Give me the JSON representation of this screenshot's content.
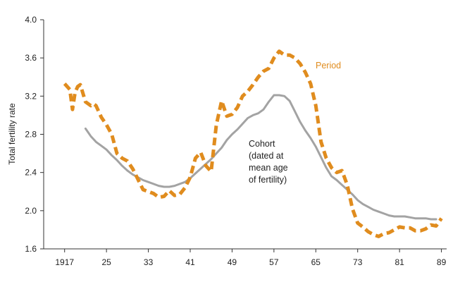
{
  "chart_data": {
    "type": "line",
    "ylabel": "Total fertility rate",
    "xlabel": "",
    "xlim": [
      1913,
      1990
    ],
    "ylim": [
      1.6,
      4.0
    ],
    "x_ticks": [
      {
        "value": 1917,
        "label": "1917"
      },
      {
        "value": 1925,
        "label": "25"
      },
      {
        "value": 1933,
        "label": "33"
      },
      {
        "value": 1941,
        "label": "41"
      },
      {
        "value": 1949,
        "label": "49"
      },
      {
        "value": 1957,
        "label": "57"
      },
      {
        "value": 1965,
        "label": "65"
      },
      {
        "value": 1973,
        "label": "73"
      },
      {
        "value": 1981,
        "label": "81"
      },
      {
        "value": 1989,
        "label": "89"
      }
    ],
    "y_ticks": [
      {
        "value": 1.6,
        "label": "1.6"
      },
      {
        "value": 2.0,
        "label": "2.0"
      },
      {
        "value": 2.4,
        "label": "2.4"
      },
      {
        "value": 2.8,
        "label": "2.8"
      },
      {
        "value": 3.2,
        "label": "3.2"
      },
      {
        "value": 3.6,
        "label": "3.6"
      },
      {
        "value": 4.0,
        "label": "4.0"
      }
    ],
    "series": [
      {
        "name": "Period",
        "label": "Period",
        "color": "#e08c1e",
        "dash": true,
        "x": [
          1917,
          1918,
          1918.5,
          1919,
          1919.5,
          1920,
          1921,
          1922,
          1922.5,
          1923,
          1924,
          1925,
          1926,
          1927,
          1928,
          1929,
          1930,
          1931,
          1932,
          1933,
          1934,
          1935,
          1936,
          1937,
          1938,
          1939,
          1940,
          1941,
          1942,
          1943,
          1944,
          1945,
          1946,
          1947,
          1948,
          1949,
          1950,
          1951,
          1952,
          1953,
          1954,
          1955,
          1956,
          1957,
          1958,
          1959,
          1960,
          1961,
          1962,
          1963,
          1964,
          1965,
          1966,
          1967,
          1968,
          1969,
          1970,
          1971,
          1972,
          1973,
          1974,
          1975,
          1976,
          1977,
          1978,
          1979,
          1980,
          1981,
          1982,
          1983,
          1984,
          1985,
          1986,
          1987,
          1988,
          1989
        ],
        "y": [
          3.33,
          3.27,
          3.06,
          3.24,
          3.3,
          3.32,
          3.14,
          3.1,
          3.12,
          3.1,
          2.98,
          2.9,
          2.8,
          2.6,
          2.55,
          2.52,
          2.44,
          2.33,
          2.22,
          2.2,
          2.18,
          2.14,
          2.15,
          2.21,
          2.16,
          2.17,
          2.24,
          2.35,
          2.55,
          2.61,
          2.47,
          2.41,
          2.9,
          3.15,
          2.99,
          3.01,
          3.08,
          3.2,
          3.25,
          3.32,
          3.4,
          3.46,
          3.49,
          3.6,
          3.67,
          3.63,
          3.63,
          3.6,
          3.54,
          3.45,
          3.33,
          3.1,
          2.72,
          2.55,
          2.45,
          2.4,
          2.42,
          2.27,
          2.02,
          1.87,
          1.83,
          1.78,
          1.75,
          1.73,
          1.76,
          1.77,
          1.8,
          1.83,
          1.82,
          1.82,
          1.79,
          1.79,
          1.81,
          1.85,
          1.84,
          1.92
        ]
      },
      {
        "name": "Cohort",
        "label_lines": [
          "Cohort",
          "(dated at",
          "mean age",
          "of fertility)"
        ],
        "color": "#a3a3a3",
        "dash": false,
        "x": [
          1921,
          1922,
          1923,
          1924,
          1925,
          1926,
          1927,
          1928,
          1929,
          1930,
          1931,
          1932,
          1933,
          1934,
          1935,
          1936,
          1937,
          1938,
          1939,
          1940,
          1941,
          1942,
          1943,
          1944,
          1945,
          1946,
          1947,
          1948,
          1949,
          1950,
          1951,
          1952,
          1953,
          1954,
          1955,
          1956,
          1957,
          1958,
          1959,
          1960,
          1961,
          1962,
          1963,
          1964,
          1965,
          1966,
          1967,
          1968,
          1969,
          1970,
          1971,
          1972,
          1973,
          1974,
          1975,
          1976,
          1977,
          1978,
          1979,
          1980,
          1981,
          1982,
          1983,
          1984,
          1985,
          1986,
          1987,
          1988
        ],
        "y": [
          2.86,
          2.78,
          2.72,
          2.68,
          2.64,
          2.58,
          2.53,
          2.47,
          2.42,
          2.38,
          2.35,
          2.32,
          2.3,
          2.28,
          2.26,
          2.25,
          2.25,
          2.26,
          2.28,
          2.3,
          2.34,
          2.39,
          2.44,
          2.49,
          2.54,
          2.6,
          2.66,
          2.74,
          2.8,
          2.85,
          2.91,
          2.97,
          3.0,
          3.02,
          3.06,
          3.14,
          3.21,
          3.21,
          3.2,
          3.15,
          3.04,
          2.93,
          2.84,
          2.76,
          2.67,
          2.56,
          2.45,
          2.36,
          2.32,
          2.27,
          2.22,
          2.17,
          2.11,
          2.07,
          2.04,
          2.01,
          1.99,
          1.97,
          1.95,
          1.94,
          1.94,
          1.94,
          1.93,
          1.92,
          1.92,
          1.92,
          1.91,
          1.91
        ]
      }
    ]
  }
}
